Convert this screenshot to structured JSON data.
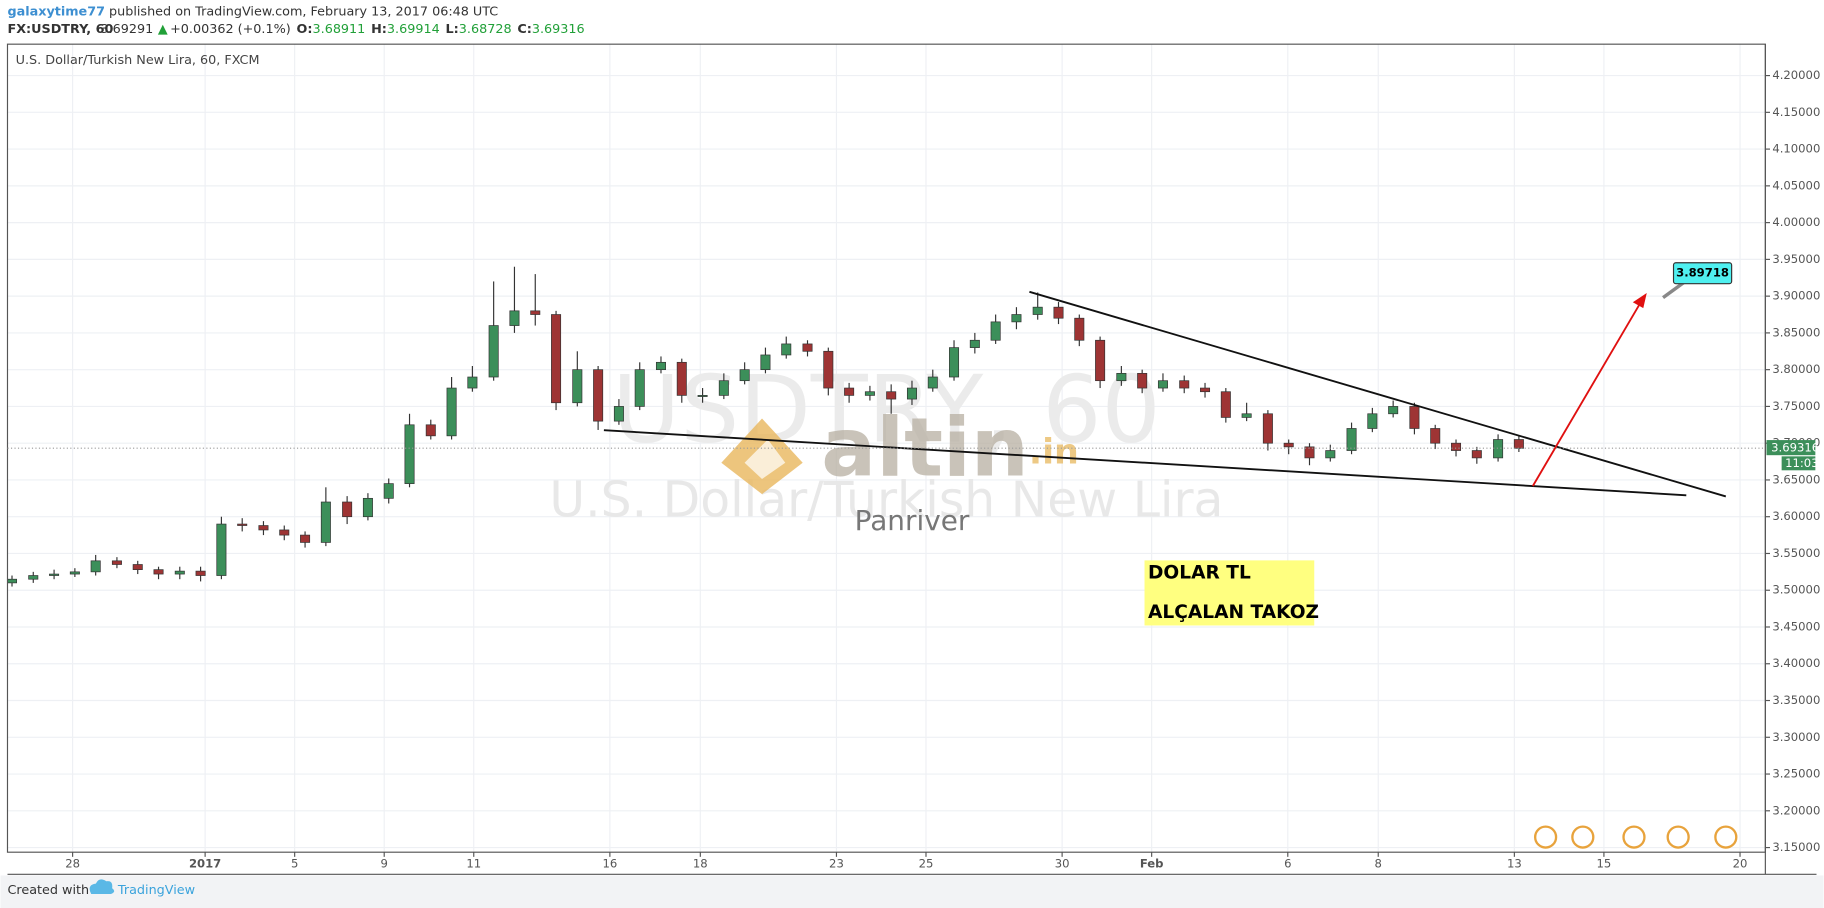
{
  "header": {
    "author": "galaxytime77",
    "published": "published on TradingView.com, February 13, 2017 06:48 UTC",
    "symbol": "FX:USDTRY, 60",
    "price": "3.69291",
    "change": "+0.00362 (+0.1%)",
    "o_label": "O:",
    "o": "3.68911",
    "h_label": "H:",
    "h": "3.69914",
    "l_label": "L:",
    "l": "3.68728",
    "c_label": "C:",
    "c": "3.69316"
  },
  "chart_data": {
    "type": "candlestick",
    "legend": "U.S. Dollar/Turkish New Lira, 60, FXCM",
    "watermark_symbol": "USDTRY, 60",
    "watermark_name": "U.S. Dollar/Turkish New Lira",
    "up_color": "#3c8f5a",
    "down_color": "#9e3434",
    "grid": true,
    "x": [
      -1.34,
      -0.87,
      -0.41,
      0.05,
      0.51,
      0.98,
      1.44,
      1.9,
      2.37,
      2.83,
      3.29,
      3.75,
      4.22,
      4.68,
      5.14,
      5.6,
      6.07,
      6.53,
      6.99,
      7.45,
      7.92,
      8.38,
      8.84,
      9.31,
      9.77,
      10.23,
      10.69,
      11.16,
      11.62,
      12.08,
      12.54,
      13.01,
      13.47,
      13.93,
      14.4,
      14.86,
      15.32,
      15.78,
      16.25,
      16.71,
      17.17,
      17.63,
      18.1,
      18.56,
      19.02,
      19.49,
      19.95,
      20.41,
      20.87,
      21.34,
      21.8,
      22.26,
      22.72,
      23.19,
      23.65,
      24.11,
      24.58,
      25.04,
      25.5,
      25.96,
      26.43,
      26.89,
      27.35,
      27.81,
      28.28,
      28.74,
      29.2,
      29.67,
      30.13,
      30.59,
      31.05,
      31.52,
      31.98
    ],
    "open": [
      3.51,
      3.515,
      3.52,
      3.522,
      3.525,
      3.54,
      3.535,
      3.528,
      3.522,
      3.526,
      3.52,
      3.59,
      3.588,
      3.582,
      3.575,
      3.565,
      3.62,
      3.6,
      3.625,
      3.645,
      3.725,
      3.71,
      3.775,
      3.79,
      3.86,
      3.88,
      3.875,
      3.755,
      3.8,
      3.73,
      3.75,
      3.8,
      3.81,
      3.765,
      3.765,
      3.785,
      3.8,
      3.82,
      3.835,
      3.825,
      3.775,
      3.765,
      3.77,
      3.76,
      3.775,
      3.79,
      3.83,
      3.84,
      3.865,
      3.875,
      3.885,
      3.87,
      3.84,
      3.785,
      3.795,
      3.775,
      3.785,
      3.775,
      3.77,
      3.735,
      3.74,
      3.7,
      3.695,
      3.68,
      3.69,
      3.72,
      3.74,
      3.75,
      3.72,
      3.7,
      3.69,
      3.68,
      3.705
    ],
    "high": [
      3.52,
      3.525,
      3.528,
      3.53,
      3.548,
      3.545,
      3.54,
      3.532,
      3.532,
      3.532,
      3.6,
      3.598,
      3.594,
      3.588,
      3.58,
      3.64,
      3.628,
      3.632,
      3.652,
      3.74,
      3.732,
      3.79,
      3.805,
      3.92,
      3.94,
      3.93,
      3.88,
      3.825,
      3.805,
      3.76,
      3.81,
      3.818,
      3.815,
      3.775,
      3.795,
      3.81,
      3.83,
      3.845,
      3.84,
      3.83,
      3.782,
      3.778,
      3.78,
      3.785,
      3.8,
      3.84,
      3.85,
      3.875,
      3.885,
      3.905,
      3.892,
      3.875,
      3.845,
      3.805,
      3.8,
      3.795,
      3.792,
      3.782,
      3.775,
      3.755,
      3.745,
      3.705,
      3.7,
      3.698,
      3.728,
      3.748,
      3.758,
      3.755,
      3.725,
      3.705,
      3.695,
      3.712,
      3.71
    ],
    "low": [
      3.505,
      3.51,
      3.515,
      3.518,
      3.52,
      3.53,
      3.522,
      3.515,
      3.515,
      3.512,
      3.515,
      3.58,
      3.575,
      3.568,
      3.558,
      3.56,
      3.59,
      3.595,
      3.618,
      3.64,
      3.705,
      3.705,
      3.77,
      3.785,
      3.85,
      3.86,
      3.745,
      3.75,
      3.718,
      3.725,
      3.745,
      3.795,
      3.755,
      3.755,
      3.76,
      3.78,
      3.795,
      3.815,
      3.818,
      3.765,
      3.755,
      3.758,
      3.74,
      3.752,
      3.77,
      3.785,
      3.822,
      3.835,
      3.855,
      3.868,
      3.862,
      3.832,
      3.775,
      3.778,
      3.768,
      3.77,
      3.768,
      3.762,
      3.728,
      3.73,
      3.69,
      3.685,
      3.67,
      3.675,
      3.685,
      3.715,
      3.735,
      3.712,
      3.692,
      3.682,
      3.672,
      3.675,
      3.688
    ],
    "close": [
      3.515,
      3.52,
      3.522,
      3.525,
      3.54,
      3.535,
      3.528,
      3.522,
      3.526,
      3.52,
      3.59,
      3.588,
      3.582,
      3.575,
      3.565,
      3.62,
      3.6,
      3.625,
      3.645,
      3.725,
      3.71,
      3.775,
      3.79,
      3.86,
      3.88,
      3.875,
      3.755,
      3.8,
      3.73,
      3.75,
      3.8,
      3.81,
      3.765,
      3.765,
      3.785,
      3.8,
      3.82,
      3.835,
      3.825,
      3.775,
      3.765,
      3.77,
      3.76,
      3.775,
      3.79,
      3.83,
      3.84,
      3.865,
      3.875,
      3.885,
      3.87,
      3.84,
      3.785,
      3.795,
      3.775,
      3.785,
      3.775,
      3.77,
      3.735,
      3.74,
      3.7,
      3.695,
      3.68,
      3.69,
      3.72,
      3.74,
      3.75,
      3.72,
      3.7,
      3.69,
      3.68,
      3.705,
      3.693
    ],
    "xlim": [
      -1.44,
      37.43
    ],
    "xticks": [
      {
        "value": 0,
        "label": "28"
      },
      {
        "value": 2.93,
        "label": "2017"
      },
      {
        "value": 4.91,
        "label": "5"
      },
      {
        "value": 6.89,
        "label": "9"
      },
      {
        "value": 8.87,
        "label": "11"
      },
      {
        "value": 11.88,
        "label": "16"
      },
      {
        "value": 13.88,
        "label": "18"
      },
      {
        "value": 16.89,
        "label": "23"
      },
      {
        "value": 18.87,
        "label": "25"
      },
      {
        "value": 21.88,
        "label": "30"
      },
      {
        "value": 23.86,
        "label": "Feb"
      },
      {
        "value": 26.87,
        "label": "6"
      },
      {
        "value": 28.87,
        "label": "8"
      },
      {
        "value": 31.88,
        "label": "13"
      },
      {
        "value": 33.86,
        "label": "15"
      },
      {
        "value": 36.87,
        "label": "20"
      }
    ],
    "ylim": [
      3.1437,
      4.2427
    ],
    "yticks": [
      {
        "value": 3.15,
        "label": "3.15000"
      },
      {
        "value": 3.2,
        "label": "3.20000"
      },
      {
        "value": 3.25,
        "label": "3.25000"
      },
      {
        "value": 3.3,
        "label": "3.30000"
      },
      {
        "value": 3.35,
        "label": "3.35000"
      },
      {
        "value": 3.4,
        "label": "3.40000"
      },
      {
        "value": 3.45,
        "label": "3.45000"
      },
      {
        "value": 3.5,
        "label": "3.50000"
      },
      {
        "value": 3.55,
        "label": "3.55000"
      },
      {
        "value": 3.6,
        "label": "3.60000"
      },
      {
        "value": 3.65,
        "label": "3.65000"
      },
      {
        "value": 3.7,
        "label": "3.70000"
      },
      {
        "value": 3.75,
        "label": "3.75000"
      },
      {
        "value": 3.8,
        "label": "3.80000"
      },
      {
        "value": 3.85,
        "label": "3.85000"
      },
      {
        "value": 3.9,
        "label": "3.90000"
      },
      {
        "value": 3.95,
        "label": "3.95000"
      },
      {
        "value": 4.0,
        "label": "4.00000"
      },
      {
        "value": 4.05,
        "label": "4.05000"
      },
      {
        "value": 4.1,
        "label": "4.10000"
      },
      {
        "value": 4.15,
        "label": "4.15000"
      },
      {
        "value": 4.2,
        "label": "4.20000"
      }
    ],
    "last_price": 3.69316,
    "countdown": "11:03",
    "annotations": [
      "DOLAR TL",
      "ALÇALAN TAKOZ"
    ],
    "target_label": 3.89718
  },
  "watermark": {
    "logo": "altin",
    "logo_suffix": ".in",
    "author": "Panriver"
  },
  "footer": {
    "created": "Created with",
    "brand": "TradingView"
  }
}
